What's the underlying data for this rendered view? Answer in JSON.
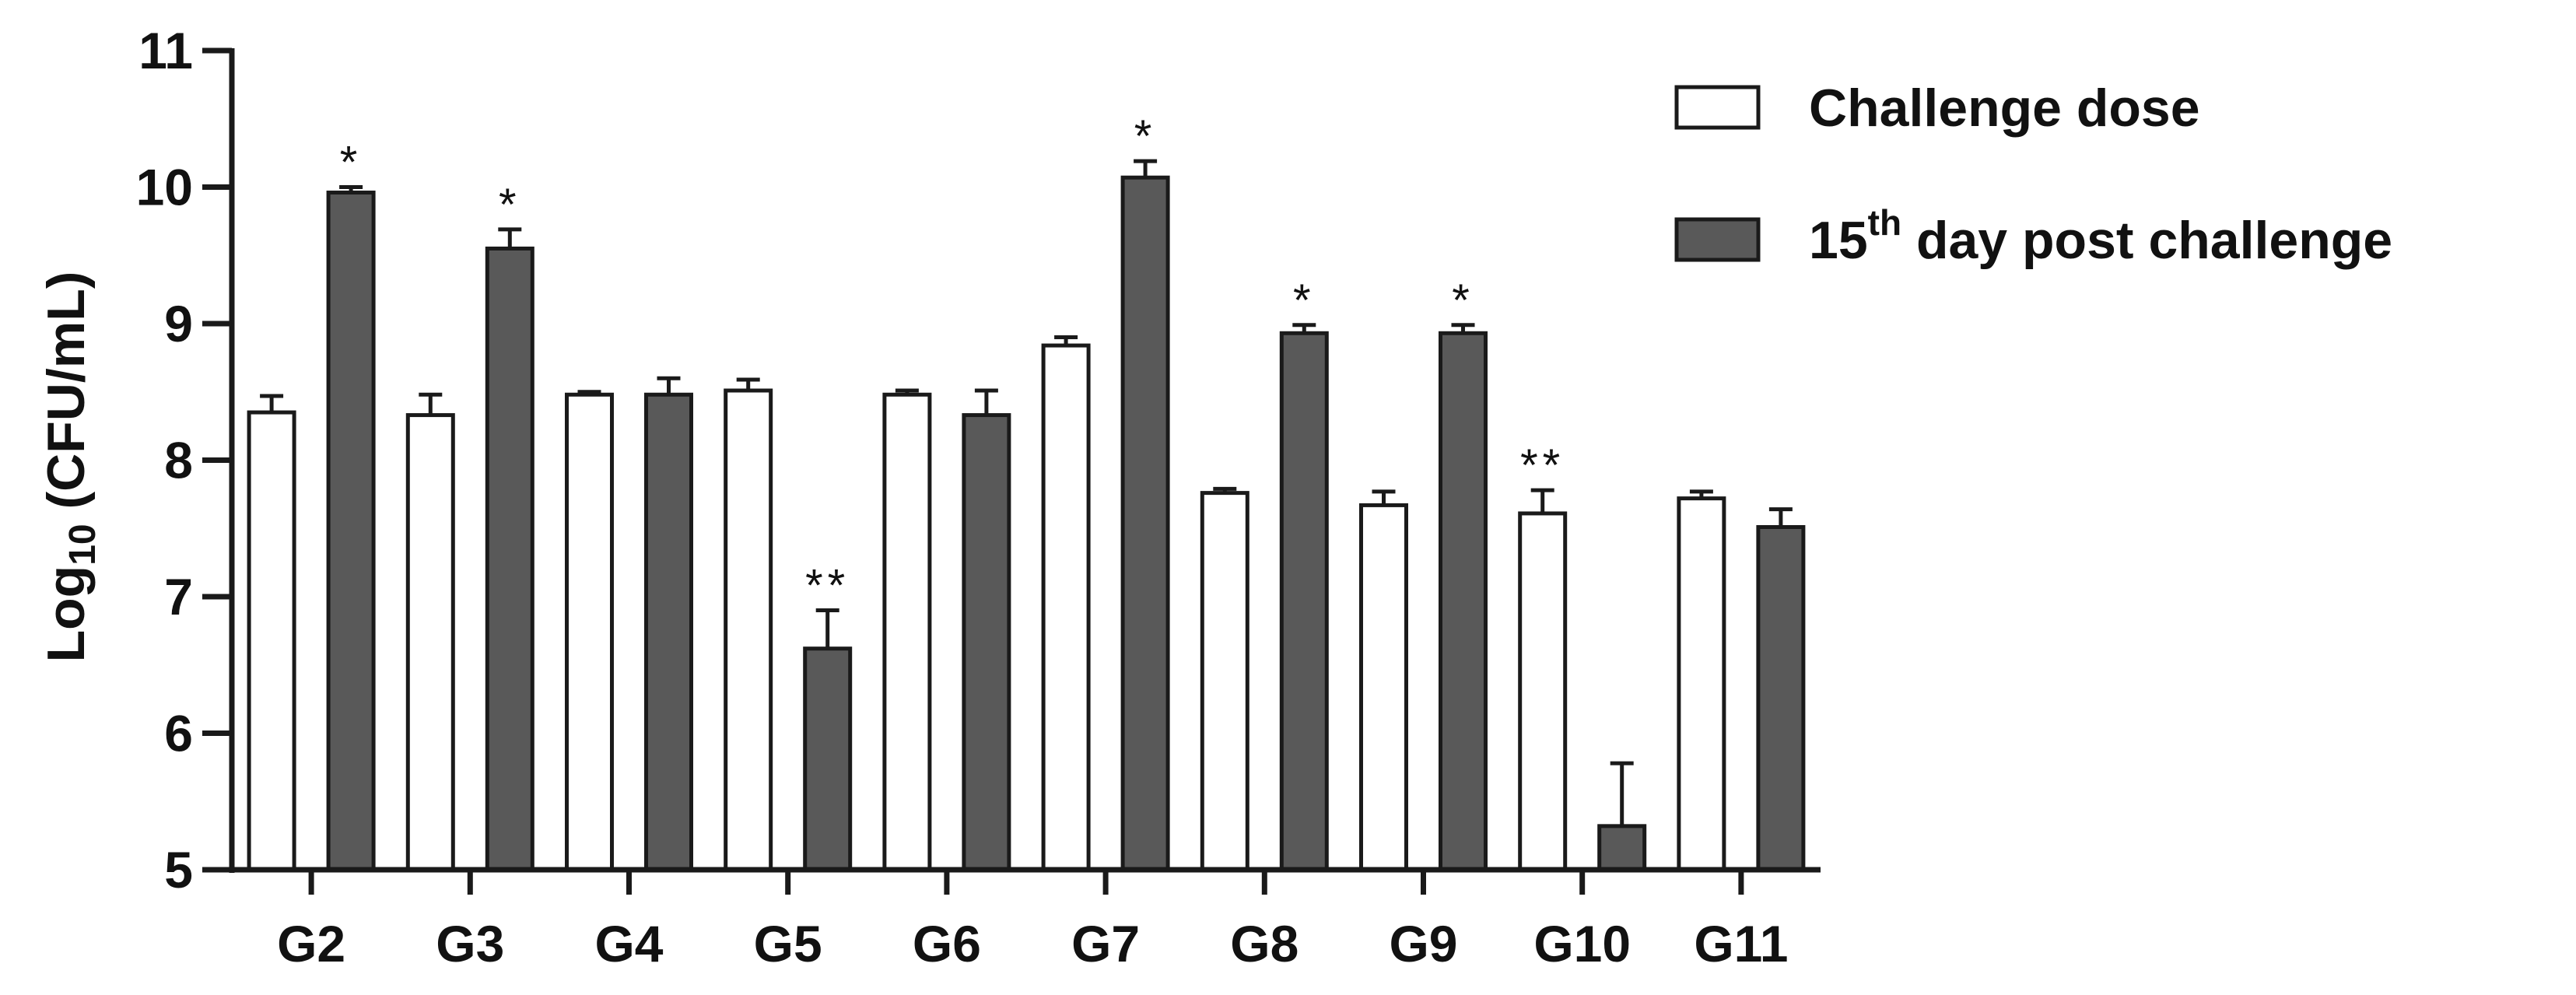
{
  "chart_data": {
    "type": "bar",
    "title": "",
    "xlabel": "",
    "ylabel_main": "Log",
    "ylabel_sub": "10",
    "ylabel_rest": " (CFU/mL)",
    "ylim": [
      5,
      11
    ],
    "yticks": [
      "5",
      "6",
      "7",
      "8",
      "9",
      "10",
      "11"
    ],
    "categories": [
      "G2",
      "G3",
      "G4",
      "G5",
      "G6",
      "G7",
      "G8",
      "G9",
      "G10",
      "G11"
    ],
    "series": [
      {
        "name": "Challenge dose",
        "color": "#ffffff",
        "values": [
          8.35,
          8.33,
          8.48,
          8.51,
          8.48,
          8.84,
          7.76,
          7.67,
          7.61,
          7.72
        ],
        "errors": [
          0.12,
          0.15,
          0.02,
          0.08,
          0.03,
          0.06,
          0.03,
          0.1,
          0.17,
          0.05
        ],
        "significance": [
          "",
          "",
          "",
          "",
          "",
          "",
          "",
          "",
          "**",
          ""
        ]
      },
      {
        "name": "15th day post challenge",
        "color": "#595959",
        "values": [
          9.96,
          9.55,
          8.48,
          6.62,
          8.33,
          10.07,
          8.93,
          8.93,
          5.32,
          7.51
        ],
        "errors": [
          0.04,
          0.14,
          0.12,
          0.28,
          0.18,
          0.12,
          0.06,
          0.06,
          0.46,
          0.13
        ],
        "significance": [
          "*",
          "*",
          "",
          "**",
          "",
          "*",
          "*",
          "*",
          "",
          ""
        ]
      }
    ],
    "legend": {
      "placement": "top-right",
      "entries": [
        {
          "main": "Challenge dose",
          "sup": "",
          "rest": ""
        },
        {
          "main": "15",
          "sup": "th",
          "rest": " day post challenge"
        }
      ]
    }
  }
}
